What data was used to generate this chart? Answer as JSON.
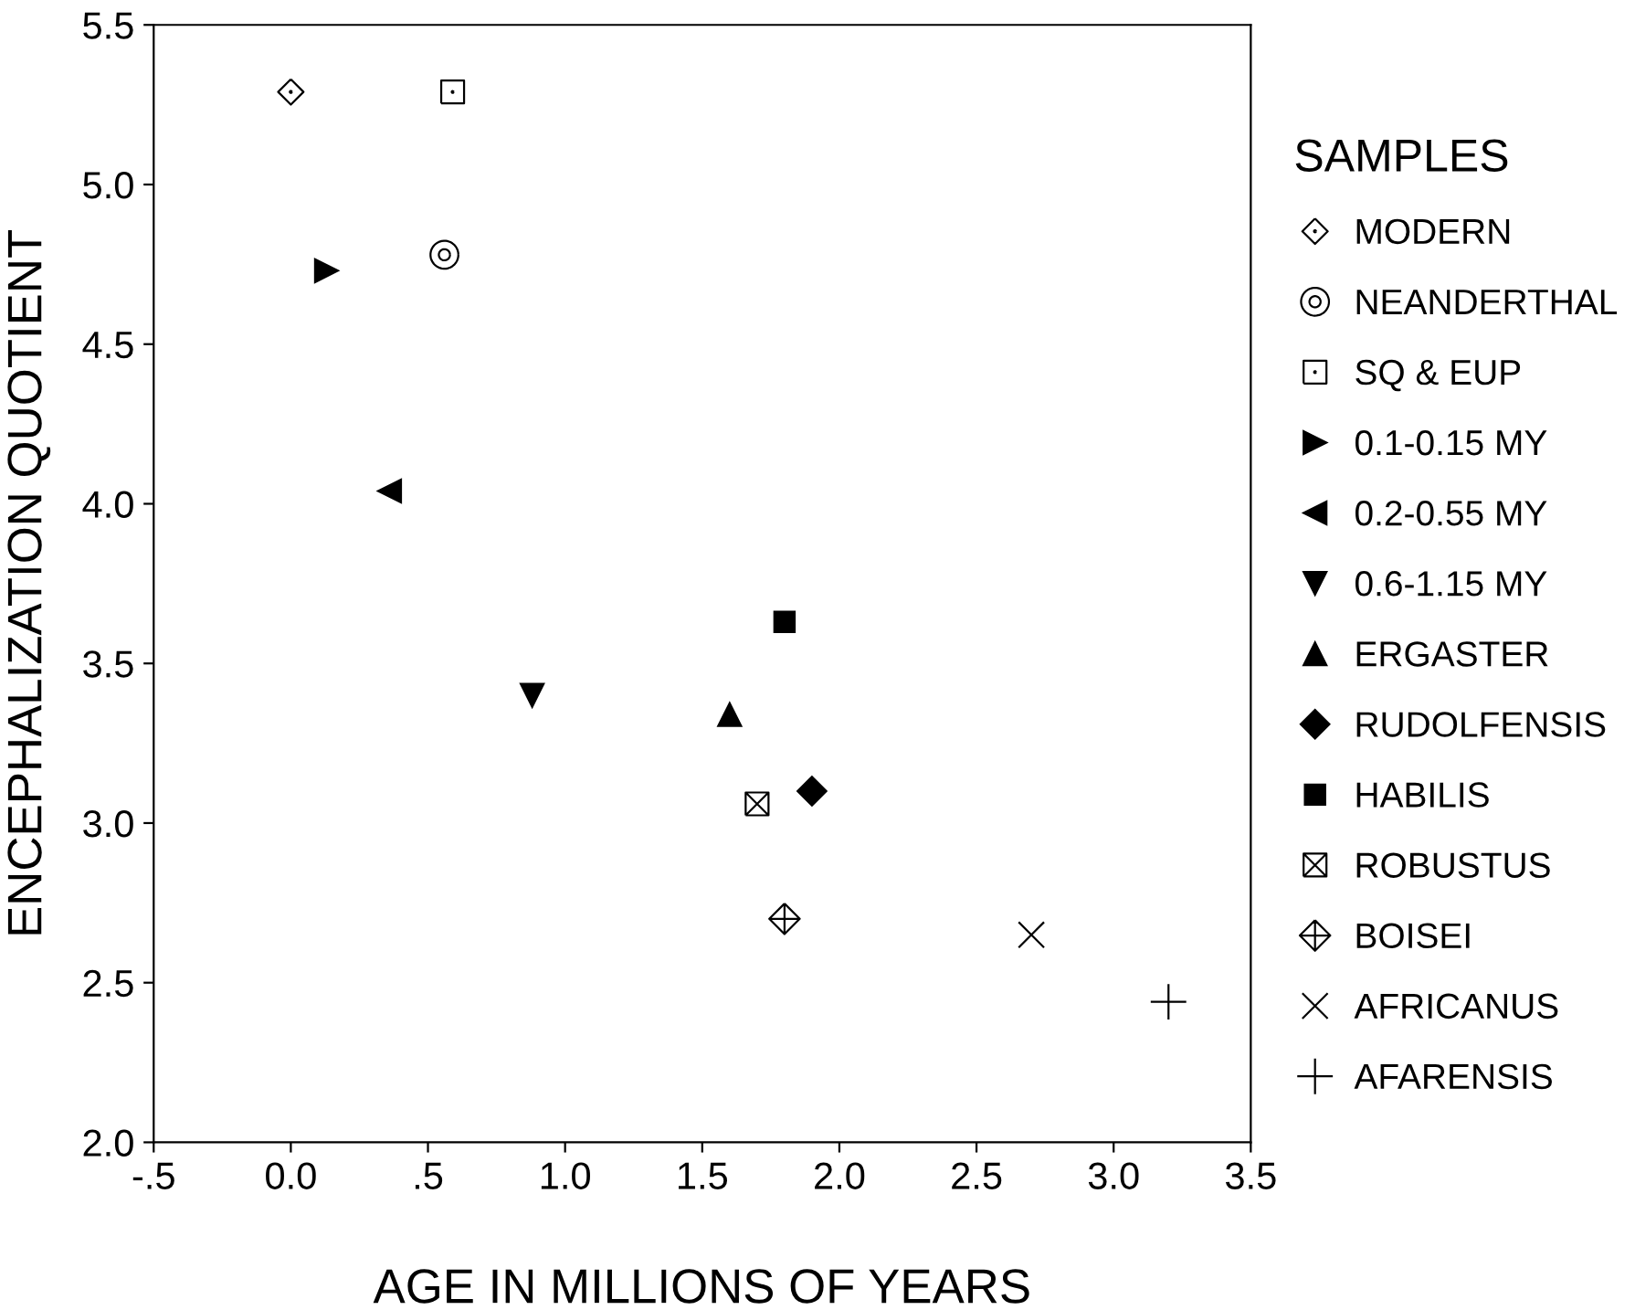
{
  "chart_data": {
    "type": "scatter",
    "xlabel": "AGE IN MILLIONS OF YEARS",
    "ylabel": "ENCEPHALIZATION QUOTIENT",
    "legend_title": "SAMPLES",
    "legend": "right",
    "grid": false,
    "xlim": [
      -0.5,
      3.5
    ],
    "ylim": [
      2.0,
      5.5
    ],
    "xticks": [
      {
        "value": -0.5,
        "label": "-.5"
      },
      {
        "value": 0,
        "label": "0.0"
      },
      {
        "value": 0.5,
        "label": ".5"
      },
      {
        "value": 1,
        "label": "1.0"
      },
      {
        "value": 1.5,
        "label": "1.5"
      },
      {
        "value": 2,
        "label": "2.0"
      },
      {
        "value": 2.5,
        "label": "2.5"
      },
      {
        "value": 3,
        "label": "3.0"
      },
      {
        "value": 3.5,
        "label": "3.5"
      }
    ],
    "yticks": [
      {
        "value": 2,
        "label": "2.0"
      },
      {
        "value": 2.5,
        "label": "2.5"
      },
      {
        "value": 3,
        "label": "3.0"
      },
      {
        "value": 3.5,
        "label": "3.5"
      },
      {
        "value": 4,
        "label": "4.0"
      },
      {
        "value": 4.5,
        "label": "4.5"
      },
      {
        "value": 5,
        "label": "5.0"
      },
      {
        "value": 5.5,
        "label": "5.5"
      }
    ],
    "series": [
      {
        "name": "MODERN",
        "color": "#000000",
        "x": [
          0.0
        ],
        "values": [
          5.29
        ]
      },
      {
        "name": "NEANDERTHAL",
        "color": "#000000",
        "x": [
          0.56
        ],
        "values": [
          4.78
        ]
      },
      {
        "name": "SQ & EUP",
        "color": "#000000",
        "x": [
          0.59
        ],
        "values": [
          5.29
        ]
      },
      {
        "name": "0.1-0.15 MY",
        "color": "#000000",
        "x": [
          0.13
        ],
        "values": [
          4.73
        ]
      },
      {
        "name": "0.2-0.55 MY",
        "color": "#000000",
        "x": [
          0.36
        ],
        "values": [
          4.04
        ]
      },
      {
        "name": "0.6-1.15 MY",
        "color": "#000000",
        "x": [
          0.88
        ],
        "values": [
          3.4
        ]
      },
      {
        "name": "ERGASTER",
        "color": "#000000",
        "x": [
          1.6
        ],
        "values": [
          3.34
        ]
      },
      {
        "name": "RUDOLFENSIS",
        "color": "#000000",
        "x": [
          1.9
        ],
        "values": [
          3.1
        ]
      },
      {
        "name": "HABILIS",
        "color": "#000000",
        "x": [
          1.8
        ],
        "values": [
          3.63
        ]
      },
      {
        "name": "ROBUSTUS",
        "color": "#000000",
        "x": [
          1.7
        ],
        "values": [
          3.06
        ]
      },
      {
        "name": "BOISEI",
        "color": "#000000",
        "x": [
          1.8
        ],
        "values": [
          2.7
        ]
      },
      {
        "name": "AFRICANUS",
        "color": "#000000",
        "x": [
          2.7
        ],
        "values": [
          2.65
        ]
      },
      {
        "name": "AFARENSIS",
        "color": "#000000",
        "x": [
          3.2
        ],
        "values": [
          2.44
        ]
      }
    ]
  }
}
